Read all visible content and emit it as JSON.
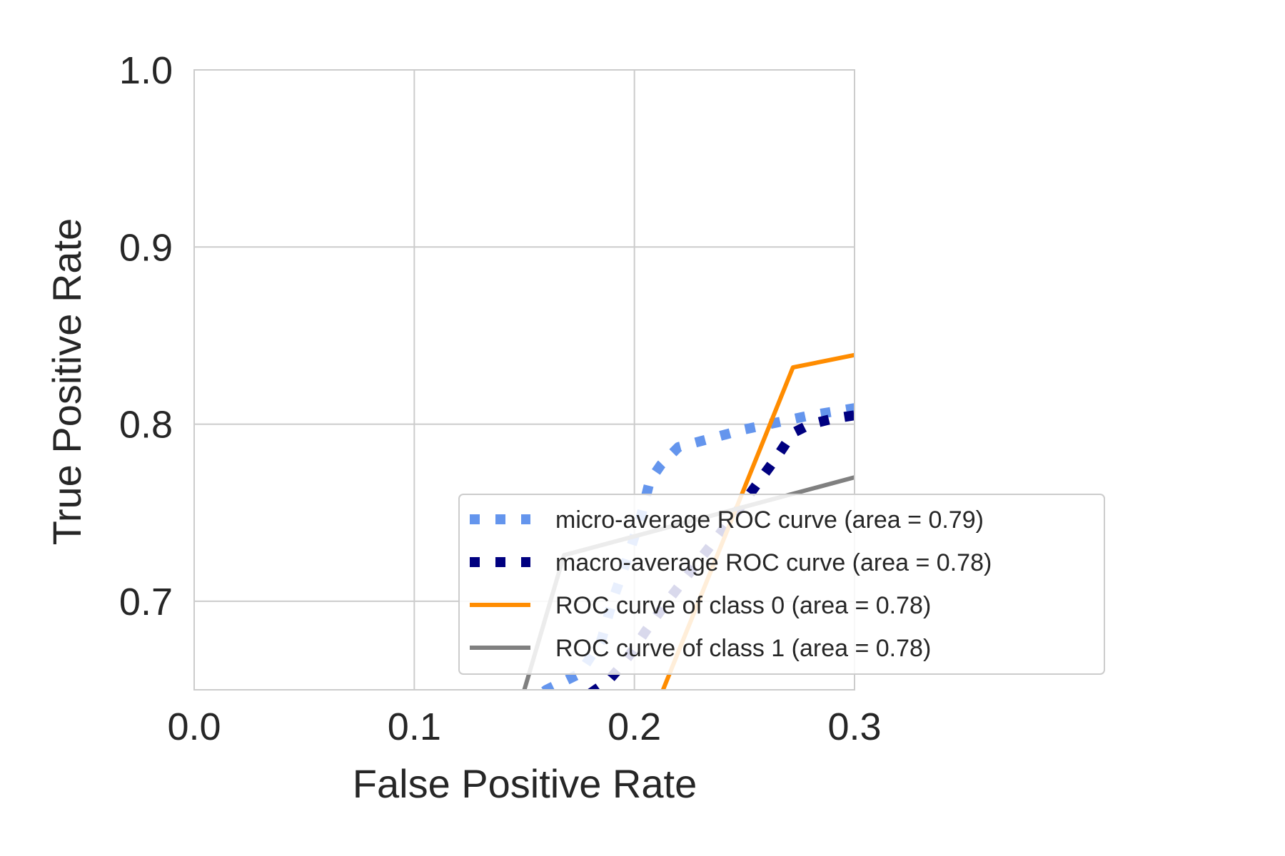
{
  "chart_data": {
    "type": "line",
    "title": "",
    "xlabel": "False Positive Rate",
    "ylabel": "True Positive Rate",
    "xlim": [
      0.0,
      0.3
    ],
    "ylim": [
      0.65,
      1.0
    ],
    "xticks": [
      "0.0",
      "0.1",
      "0.2",
      "0.3"
    ],
    "yticks": [
      "0.7",
      "0.8",
      "0.9",
      "1.0"
    ],
    "grid": true,
    "legend_position": "lower-right",
    "series": [
      {
        "name": "micro-average ROC curve (area = 0.79)",
        "color": "#6495ed",
        "style": "dotted",
        "x": [
          0.15,
          0.16,
          0.175,
          0.185,
          0.19,
          0.197,
          0.203,
          0.207,
          0.212,
          0.22,
          0.235,
          0.25,
          0.265,
          0.28,
          0.29,
          0.3
        ],
        "y": [
          0.64,
          0.65,
          0.659,
          0.678,
          0.7,
          0.725,
          0.748,
          0.768,
          0.777,
          0.787,
          0.792,
          0.797,
          0.801,
          0.805,
          0.807,
          0.809
        ]
      },
      {
        "name": "macro-average ROC curve (area = 0.78)",
        "color": "#000080",
        "style": "dotted",
        "x": [
          0.18,
          0.188,
          0.193,
          0.198,
          0.205,
          0.215,
          0.225,
          0.235,
          0.245,
          0.255,
          0.265,
          0.272,
          0.28,
          0.29,
          0.3
        ],
        "y": [
          0.648,
          0.655,
          0.662,
          0.67,
          0.683,
          0.7,
          0.716,
          0.732,
          0.748,
          0.765,
          0.782,
          0.795,
          0.8,
          0.803,
          0.805
        ]
      },
      {
        "name": "ROC curve of class 0 (area = 0.78)",
        "color": "#ff8c00",
        "style": "solid",
        "x": [
          0.213,
          0.272,
          0.3
        ],
        "y": [
          0.65,
          0.832,
          0.839
        ]
      },
      {
        "name": "ROC curve of class 1 (area = 0.78)",
        "color": "#808080",
        "style": "solid",
        "x": [
          0.15,
          0.168,
          0.3
        ],
        "y": [
          0.65,
          0.726,
          0.77
        ]
      }
    ]
  }
}
